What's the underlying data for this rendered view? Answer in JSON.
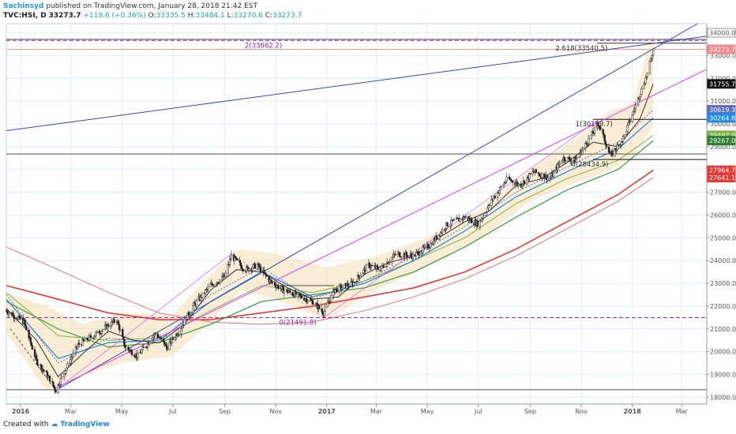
{
  "header": {
    "author": "Sachinsyd",
    "published_text": "published on TradingView.com, January 28, 2018 21:42 EST",
    "symbol": "TVC:HSI, D",
    "last": "33273.7",
    "change": "+119.6 (+0.36%)",
    "o_label": "O:",
    "o": "33335.5",
    "h_label": "H:",
    "h": "33484.1",
    "l_label": "L:",
    "l": "33270.6",
    "c_label": "C:",
    "c": "33273.7"
  },
  "footer": {
    "created_with": "Created with",
    "brand": "TradingView"
  },
  "colors": {
    "candle": "#1f1f1f",
    "bollinger": "#f5deb3",
    "ma_red": "#e53935",
    "ma_green": "#43a047",
    "ma_blue": "#1e88e5",
    "trend_blue": "#3949ab",
    "trend_magenta": "#e040fb",
    "fib": "#9c27b0"
  },
  "chart_data": {
    "type": "candlestick",
    "x_axis_labels": [
      "2016",
      "Mar",
      "May",
      "Jul",
      "Sep",
      "Nov",
      "2017",
      "Mar",
      "May",
      "Jul",
      "Sep",
      "Nov",
      "2018",
      "Mar"
    ],
    "x_axis_months": [
      "2016-01",
      "2016-03",
      "2016-05",
      "2016-07",
      "2016-09",
      "2016-11",
      "2017-01",
      "2017-03",
      "2017-05",
      "2017-07",
      "2017-09",
      "2017-11",
      "2018-01",
      "2018-03"
    ],
    "y_ticks": [
      18000,
      19000,
      20000,
      21000,
      22000,
      23000,
      24000,
      25000,
      26000,
      27000,
      28000,
      29000,
      30000,
      31000,
      32000,
      33000,
      34000
    ],
    "ylim": [
      17700,
      34400
    ],
    "xlim": [
      "2015-12-15",
      "2018-03-31"
    ],
    "price_path": [
      [
        "2015-12-15",
        21800
      ],
      [
        "2016-01-05",
        21300
      ],
      [
        "2016-01-20",
        19600
      ],
      [
        "2016-02-05",
        18800
      ],
      [
        "2016-02-12",
        18300
      ],
      [
        "2016-02-25",
        19300
      ],
      [
        "2016-03-10",
        20300
      ],
      [
        "2016-04-01",
        20800
      ],
      [
        "2016-04-25",
        21400
      ],
      [
        "2016-05-05",
        20200
      ],
      [
        "2016-05-20",
        19800
      ],
      [
        "2016-06-10",
        20800
      ],
      [
        "2016-06-24",
        20200
      ],
      [
        "2016-07-10",
        21000
      ],
      [
        "2016-07-25",
        22000
      ],
      [
        "2016-08-15",
        22900
      ],
      [
        "2016-09-01",
        23300
      ],
      [
        "2016-09-09",
        24200
      ],
      [
        "2016-09-25",
        23600
      ],
      [
        "2016-10-10",
        23800
      ],
      [
        "2016-10-25",
        23100
      ],
      [
        "2016-11-10",
        22700
      ],
      [
        "2016-11-25",
        22500
      ],
      [
        "2016-12-15",
        22200
      ],
      [
        "2016-12-28",
        21700
      ],
      [
        "2017-01-10",
        22700
      ],
      [
        "2017-02-01",
        23000
      ],
      [
        "2017-02-20",
        23800
      ],
      [
        "2017-03-05",
        23600
      ],
      [
        "2017-03-25",
        24300
      ],
      [
        "2017-04-15",
        24200
      ],
      [
        "2017-05-05",
        24700
      ],
      [
        "2017-05-25",
        25600
      ],
      [
        "2017-06-15",
        25900
      ],
      [
        "2017-07-01",
        25600
      ],
      [
        "2017-07-20",
        26800
      ],
      [
        "2017-08-05",
        27600
      ],
      [
        "2017-08-20",
        27300
      ],
      [
        "2017-09-05",
        27900
      ],
      [
        "2017-09-25",
        27600
      ],
      [
        "2017-10-10",
        28500
      ],
      [
        "2017-10-25",
        28400
      ],
      [
        "2017-11-08",
        29200
      ],
      [
        "2017-11-22",
        30000
      ],
      [
        "2017-12-06",
        28600
      ],
      [
        "2017-12-20",
        29300
      ],
      [
        "2018-01-02",
        30500
      ],
      [
        "2018-01-12",
        31500
      ],
      [
        "2018-01-20",
        32300
      ],
      [
        "2018-01-26",
        33273.7
      ]
    ],
    "bollinger_band": {
      "upper": [
        [
          "2015-12-15",
          22600
        ],
        [
          "2016-02-01",
          22000
        ],
        [
          "2016-03-15",
          21200
        ],
        [
          "2016-05-01",
          21700
        ],
        [
          "2016-07-01",
          21600
        ],
        [
          "2016-08-15",
          23400
        ],
        [
          "2016-09-20",
          24500
        ],
        [
          "2016-11-01",
          24300
        ],
        [
          "2017-01-01",
          23700
        ],
        [
          "2017-03-01",
          24200
        ],
        [
          "2017-05-01",
          25000
        ],
        [
          "2017-07-01",
          26200
        ],
        [
          "2017-09-01",
          28000
        ],
        [
          "2017-11-01",
          29500
        ],
        [
          "2017-12-01",
          30500
        ],
        [
          "2018-01-01",
          30900
        ],
        [
          "2018-01-26",
          34000
        ]
      ],
      "lower": [
        [
          "2015-12-15",
          20800
        ],
        [
          "2016-02-01",
          18300
        ],
        [
          "2016-03-15",
          18900
        ],
        [
          "2016-05-01",
          19500
        ],
        [
          "2016-07-01",
          19800
        ],
        [
          "2016-08-15",
          21300
        ],
        [
          "2016-09-20",
          22700
        ],
        [
          "2016-11-01",
          22300
        ],
        [
          "2017-01-01",
          21400
        ],
        [
          "2017-03-01",
          22700
        ],
        [
          "2017-05-01",
          23700
        ],
        [
          "2017-07-01",
          24900
        ],
        [
          "2017-09-01",
          26600
        ],
        [
          "2017-11-01",
          27500
        ],
        [
          "2017-12-01",
          27900
        ],
        [
          "2018-01-01",
          28500
        ],
        [
          "2018-01-26",
          29900
        ]
      ]
    },
    "moving_averages": [
      {
        "color": "#e53935",
        "width": 1.6,
        "points": [
          [
            "2015-12-15",
            22900
          ],
          [
            "2016-02-15",
            22300
          ],
          [
            "2016-04-15",
            21700
          ],
          [
            "2016-06-15",
            21400
          ],
          [
            "2016-08-15",
            21400
          ],
          [
            "2016-10-15",
            21700
          ],
          [
            "2016-12-15",
            22000
          ],
          [
            "2017-02-15",
            22400
          ],
          [
            "2017-04-15",
            22800
          ],
          [
            "2017-06-15",
            23500
          ],
          [
            "2017-08-15",
            24500
          ],
          [
            "2017-10-15",
            25700
          ],
          [
            "2017-12-15",
            26900
          ],
          [
            "2018-01-26",
            27964.7
          ]
        ]
      },
      {
        "color": "#e57373",
        "width": 1,
        "points": [
          [
            "2015-12-15",
            24600
          ],
          [
            "2016-02-15",
            23600
          ],
          [
            "2016-04-15",
            22600
          ],
          [
            "2016-06-15",
            21700
          ],
          [
            "2016-08-15",
            21300
          ],
          [
            "2016-10-15",
            21200
          ],
          [
            "2016-12-15",
            21300
          ],
          [
            "2017-02-15",
            21800
          ],
          [
            "2017-04-15",
            22400
          ],
          [
            "2017-06-15",
            23200
          ],
          [
            "2017-08-15",
            24200
          ],
          [
            "2017-10-15",
            25400
          ],
          [
            "2017-12-15",
            26600
          ],
          [
            "2018-01-26",
            27641.1
          ]
        ]
      },
      {
        "color": "#43a047",
        "width": 1.3,
        "points": [
          [
            "2015-12-15",
            22200
          ],
          [
            "2016-02-15",
            21000
          ],
          [
            "2016-04-15",
            20200
          ],
          [
            "2016-06-15",
            20400
          ],
          [
            "2016-08-15",
            21200
          ],
          [
            "2016-10-15",
            22200
          ],
          [
            "2016-12-15",
            22500
          ],
          [
            "2017-02-15",
            22800
          ],
          [
            "2017-04-15",
            23500
          ],
          [
            "2017-06-15",
            24600
          ],
          [
            "2017-08-15",
            25900
          ],
          [
            "2017-10-15",
            27100
          ],
          [
            "2017-12-15",
            28000
          ],
          [
            "2018-01-26",
            29267.0
          ]
        ]
      },
      {
        "color": "#7cb342",
        "width": 1,
        "points": [
          [
            "2015-12-15",
            22600
          ],
          [
            "2016-02-15",
            20700
          ],
          [
            "2016-04-15",
            20500
          ],
          [
            "2016-06-15",
            20600
          ],
          [
            "2016-08-15",
            21800
          ],
          [
            "2016-10-15",
            22900
          ],
          [
            "2016-12-15",
            22600
          ],
          [
            "2017-02-15",
            23100
          ],
          [
            "2017-04-15",
            24000
          ],
          [
            "2017-06-15",
            25000
          ],
          [
            "2017-08-15",
            26500
          ],
          [
            "2017-10-15",
            27600
          ],
          [
            "2017-12-15",
            28400
          ],
          [
            "2018-01-26",
            29497.9
          ]
        ]
      },
      {
        "color": "#1e88e5",
        "width": 1.2,
        "points": [
          [
            "2015-12-15",
            22300
          ],
          [
            "2016-02-15",
            19700
          ],
          [
            "2016-04-15",
            20400
          ],
          [
            "2016-06-15",
            20500
          ],
          [
            "2016-08-15",
            22200
          ],
          [
            "2016-10-15",
            23500
          ],
          [
            "2016-12-15",
            22400
          ],
          [
            "2017-02-15",
            23000
          ],
          [
            "2017-04-15",
            24000
          ],
          [
            "2017-06-15",
            25300
          ],
          [
            "2017-08-15",
            26800
          ],
          [
            "2017-10-15",
            27900
          ],
          [
            "2017-12-15",
            28900
          ],
          [
            "2018-01-26",
            30264.8
          ]
        ]
      },
      {
        "color": "#5c6bc0",
        "width": 1,
        "dash": true,
        "points": [
          [
            "2015-12-15",
            22500
          ],
          [
            "2016-02-15",
            19500
          ],
          [
            "2016-04-15",
            20600
          ],
          [
            "2016-06-15",
            20400
          ],
          [
            "2016-08-15",
            22500
          ],
          [
            "2016-10-15",
            23700
          ],
          [
            "2016-12-15",
            22300
          ],
          [
            "2017-02-15",
            23100
          ],
          [
            "2017-04-15",
            24200
          ],
          [
            "2017-06-15",
            25500
          ],
          [
            "2017-08-15",
            27000
          ],
          [
            "2017-10-15",
            28100
          ],
          [
            "2017-12-15",
            29200
          ],
          [
            "2018-01-26",
            30619.3
          ]
        ]
      },
      {
        "color": "#333333",
        "width": 1,
        "points": [
          [
            "2015-12-15",
            21900
          ],
          [
            "2016-01-20",
            20500
          ],
          [
            "2016-02-15",
            18900
          ],
          [
            "2016-03-15",
            19900
          ],
          [
            "2016-04-15",
            20900
          ],
          [
            "2016-05-15",
            20500
          ],
          [
            "2016-06-15",
            20400
          ],
          [
            "2016-07-15",
            21200
          ],
          [
            "2016-08-15",
            22700
          ],
          [
            "2016-09-15",
            23600
          ],
          [
            "2016-10-15",
            23500
          ],
          [
            "2016-11-15",
            22800
          ],
          [
            "2016-12-15",
            22300
          ],
          [
            "2017-01-15",
            22400
          ],
          [
            "2017-02-15",
            23400
          ],
          [
            "2017-03-15",
            23900
          ],
          [
            "2017-04-15",
            24200
          ],
          [
            "2017-05-15",
            25000
          ],
          [
            "2017-06-15",
            25700
          ],
          [
            "2017-07-15",
            26200
          ],
          [
            "2017-08-15",
            27300
          ],
          [
            "2017-09-15",
            27600
          ],
          [
            "2017-10-15",
            28300
          ],
          [
            "2017-11-15",
            29200
          ],
          [
            "2017-12-15",
            29000
          ],
          [
            "2018-01-10",
            30200
          ],
          [
            "2018-01-26",
            31755.7
          ]
        ]
      }
    ],
    "horizontal_lines": [
      {
        "price": 33662.2,
        "color": "#9c27b0",
        "style": "dashed"
      },
      {
        "price": 33540.5,
        "color": "#333333",
        "style": "solid",
        "from": "2017-11-20"
      },
      {
        "price": 33273.7,
        "color": "#ef9a9a",
        "style": "solid"
      },
      {
        "price": 30199.7,
        "color": "#111111",
        "style": "solid",
        "from": "2017-11-15"
      },
      {
        "price": 28434.9,
        "color": "#111111",
        "style": "solid",
        "from": "2017-11-15"
      },
      {
        "price": 21491.8,
        "color": "#9c27b0",
        "style": "dashed"
      },
      {
        "price": 33710,
        "color": "#555555",
        "style": "solid"
      },
      {
        "price": 28680,
        "color": "#555555",
        "style": "solid"
      },
      {
        "price": 18330,
        "color": "#555555",
        "style": "solid"
      }
    ],
    "trend_lines": [
      {
        "from": [
          "2015-12-15",
          29700
        ],
        "to": [
          "2018-03-31",
          33850
        ],
        "color": "#3949ab"
      },
      {
        "from": [
          "2016-02-12",
          18300
        ],
        "to": [
          "2018-03-20",
          34400
        ],
        "color": "#3949ab"
      },
      {
        "from": [
          "2016-02-12",
          18400
        ],
        "to": [
          "2018-03-31",
          32400
        ],
        "color": "#e040fb"
      },
      {
        "from": [
          "2016-02-12",
          18300
        ],
        "to": [
          "2016-09-09",
          24300
        ],
        "color": "#e040fb",
        "width": 0.6
      },
      {
        "from": [
          "2016-09-09",
          24300
        ],
        "to": [
          "2016-12-28",
          21490
        ],
        "color": "#e040fb",
        "width": 0.6,
        "dash": true
      },
      {
        "from": [
          "2016-12-28",
          21490
        ],
        "to": [
          "2017-11-22",
          30200
        ],
        "color": "#e040fb",
        "width": 0.6
      },
      {
        "from": [
          "2015-12-20",
          21000
        ],
        "to": [
          "2016-02-12",
          18300
        ],
        "color": "#333333",
        "width": 0.8,
        "dash": true
      },
      {
        "from": [
          "2016-11-01",
          22900
        ],
        "to": [
          "2017-01-10",
          22900
        ],
        "color": "#333333",
        "width": 0.8
      }
    ],
    "fib_labels": [
      {
        "text": "2(33662.2)",
        "date": "2016-09-25",
        "price": 33662.2,
        "color": "#9c27b0"
      },
      {
        "text": "2.618(33540.5)",
        "date": "2017-10-01",
        "price": 33540.5,
        "color": "#333333"
      },
      {
        "text": "1(30199.7)",
        "date": "2017-10-25",
        "price": 30199.7,
        "color": "#333333"
      },
      {
        "text": "0(28434.9)",
        "date": "2017-10-20",
        "price": 28434.9,
        "color": "#333333"
      },
      {
        "text": "0(21491.8)",
        "date": "2016-11-05",
        "price": 21491.8,
        "color": "#9c27b0"
      }
    ],
    "price_tags": [
      {
        "price": 34000,
        "label": "34000.0",
        "bg": "#ffffff",
        "fg": "#555555"
      },
      {
        "price": 33273.7,
        "label": "33273.7",
        "bg": "#f08a8a",
        "fg": "#ffffff"
      },
      {
        "price": 31755.7,
        "label": "31755.7",
        "bg": "#111111",
        "fg": "#ffffff"
      },
      {
        "price": 30619.3,
        "label": "30619.3",
        "bg": "#5c6bc0",
        "fg": "#ffffff"
      },
      {
        "price": 30264.8,
        "label": "30264.8",
        "bg": "#1e88e5",
        "fg": "#ffffff"
      },
      {
        "price": 29497.9,
        "label": "29497.9",
        "bg": "#7cb342",
        "fg": "#ffffff"
      },
      {
        "price": 29267.0,
        "label": "29267.0",
        "bg": "#2e7d32",
        "fg": "#ffffff"
      },
      {
        "price": 27964.7,
        "label": "27964.7",
        "bg": "#e53935",
        "fg": "#ffffff"
      },
      {
        "price": 27641.1,
        "label": "27641.1",
        "bg": "#e53935",
        "fg": "#ffffff"
      }
    ]
  }
}
